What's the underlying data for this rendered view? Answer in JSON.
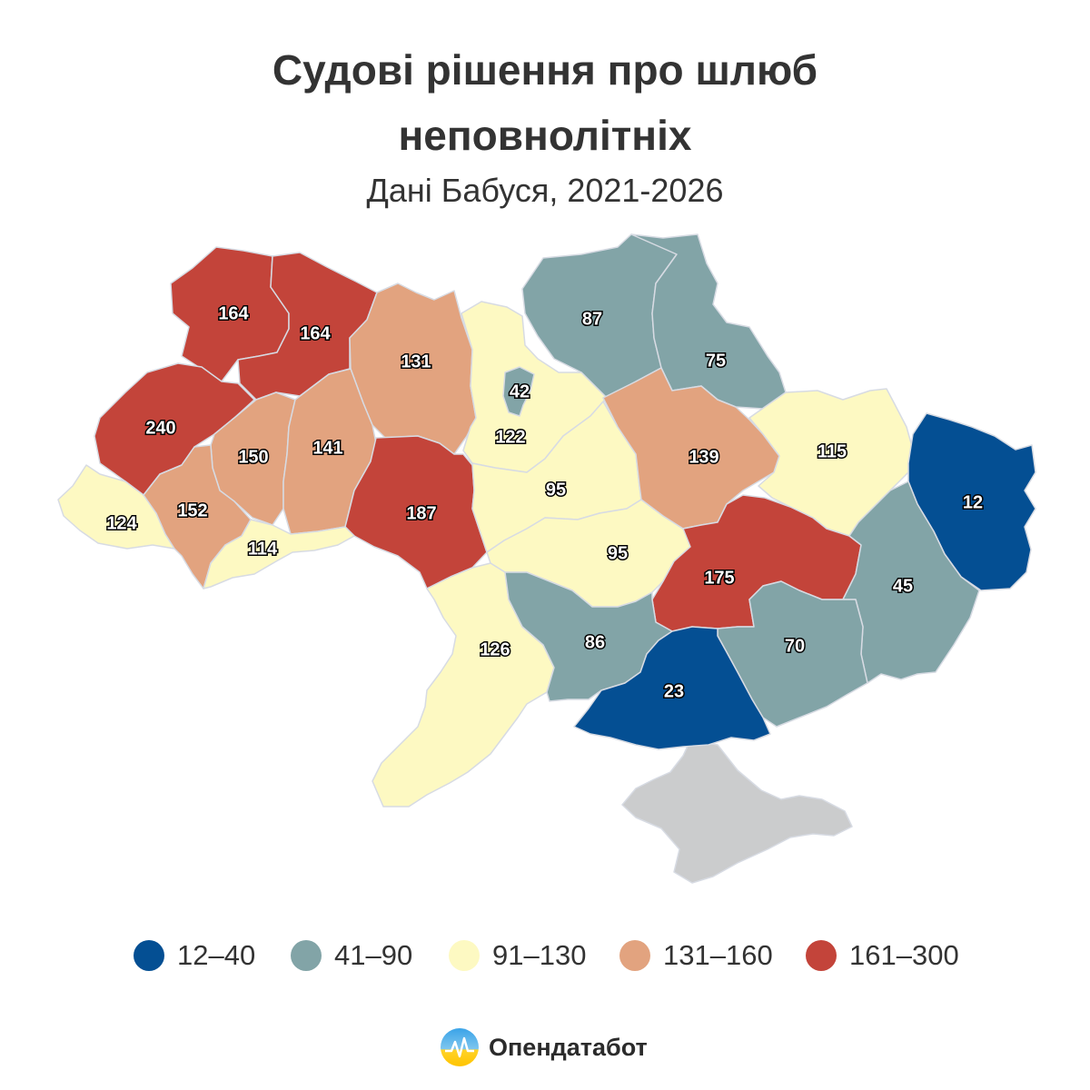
{
  "header": {
    "title_line1": "Судові рішення про шлюб",
    "title_line2": "неповнолітніх",
    "subtitle": "Дані Бабуся, 2021-2026"
  },
  "colors": {
    "b12_40": "#044f93",
    "b41_90": "#82a4a7",
    "b91_130": "#fdf9c2",
    "b131_160": "#e2a37f",
    "b161_300": "#c3443a",
    "occupied": "#cbcccd"
  },
  "legend": [
    {
      "label": "12–40",
      "color": "#044f93"
    },
    {
      "label": "41–90",
      "color": "#82a4a7"
    },
    {
      "label": "91–130",
      "color": "#fdf9c2"
    },
    {
      "label": "131–160",
      "color": "#e2a37f"
    },
    {
      "label": "161–300",
      "color": "#c3443a"
    }
  ],
  "regions": [
    {
      "id": "volyn",
      "value": "164"
    },
    {
      "id": "rivne",
      "value": "164"
    },
    {
      "id": "zhytomyr",
      "value": "131"
    },
    {
      "id": "kyiv-city",
      "value": "42"
    },
    {
      "id": "kyiv-oblast",
      "value": "122"
    },
    {
      "id": "chernihiv",
      "value": "87"
    },
    {
      "id": "sumy",
      "value": "75"
    },
    {
      "id": "lviv",
      "value": "240"
    },
    {
      "id": "ternopil",
      "value": "150"
    },
    {
      "id": "khmelnytskyi",
      "value": "141"
    },
    {
      "id": "vinnytsia",
      "value": "187"
    },
    {
      "id": "cherkasy",
      "value": "95"
    },
    {
      "id": "poltava",
      "value": "139"
    },
    {
      "id": "kharkiv",
      "value": "115"
    },
    {
      "id": "luhansk",
      "value": "12"
    },
    {
      "id": "zakarpattia",
      "value": "124"
    },
    {
      "id": "ivano-frankivsk",
      "value": "152"
    },
    {
      "id": "chernivtsi",
      "value": "114"
    },
    {
      "id": "kirovohrad",
      "value": "95"
    },
    {
      "id": "dnipropetrovsk",
      "value": "175"
    },
    {
      "id": "donetsk",
      "value": "45"
    },
    {
      "id": "odesa",
      "value": "126"
    },
    {
      "id": "mykolaiv",
      "value": "86"
    },
    {
      "id": "kherson",
      "value": "23"
    },
    {
      "id": "zaporizhzhia",
      "value": "70"
    },
    {
      "id": "crimea",
      "value": ""
    }
  ],
  "brand": {
    "name": "Опендатабот",
    "logo_icon": "opendatabot-logo-icon"
  }
}
